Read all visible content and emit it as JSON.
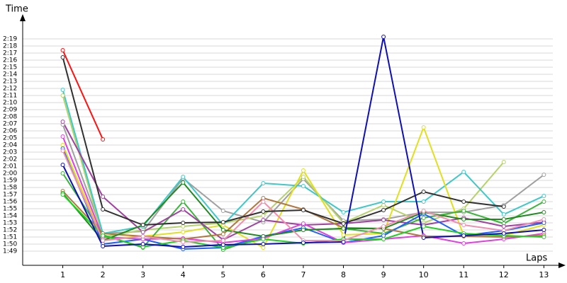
{
  "chart_data": {
    "type": "line",
    "x_label": "Laps",
    "y_label": "Time",
    "x": [
      1,
      2,
      3,
      4,
      5,
      6,
      7,
      8,
      9,
      10,
      11,
      12,
      13
    ],
    "xlim": [
      0,
      13.4
    ],
    "xticks": [
      1,
      2,
      3,
      4,
      5,
      6,
      7,
      8,
      9,
      10,
      11,
      12,
      13
    ],
    "ylim": [
      107,
      142
    ],
    "yticks": [
      {
        "value": 109,
        "label": "1:49"
      },
      {
        "value": 110,
        "label": "1:50"
      },
      {
        "value": 111,
        "label": "1:51"
      },
      {
        "value": 112,
        "label": "1:52"
      },
      {
        "value": 113,
        "label": "1:53"
      },
      {
        "value": 114,
        "label": "1:54"
      },
      {
        "value": 115,
        "label": "1:55"
      },
      {
        "value": 116,
        "label": "1:56"
      },
      {
        "value": 117,
        "label": "1:57"
      },
      {
        "value": 118,
        "label": "1:58"
      },
      {
        "value": 119,
        "label": "1:59"
      },
      {
        "value": 120,
        "label": "2:00"
      },
      {
        "value": 121,
        "label": "2:01"
      },
      {
        "value": 122,
        "label": "2:02"
      },
      {
        "value": 123,
        "label": "2:03"
      },
      {
        "value": 124,
        "label": "2:04"
      },
      {
        "value": 125,
        "label": "2:05"
      },
      {
        "value": 126,
        "label": "2:06"
      },
      {
        "value": 127,
        "label": "2:07"
      },
      {
        "value": 128,
        "label": "2:08"
      },
      {
        "value": 129,
        "label": "2:09"
      },
      {
        "value": 130,
        "label": "2:10"
      },
      {
        "value": 131,
        "label": "2:11"
      },
      {
        "value": 132,
        "label": "2:12"
      },
      {
        "value": 133,
        "label": "2:13"
      },
      {
        "value": 134,
        "label": "2:14"
      },
      {
        "value": 135,
        "label": "2:15"
      },
      {
        "value": 136,
        "label": "2:16"
      },
      {
        "value": 137,
        "label": "2:17"
      },
      {
        "value": 138,
        "label": "2:18"
      },
      {
        "value": 139,
        "label": "2:19"
      }
    ],
    "grid": true,
    "series": [
      {
        "color": "#a0a0a0",
        "values": [
          126.9,
          111.5,
          111.8,
          119.3,
          114.7,
          113.1,
          119.2,
          113.3,
          113.5,
          114.5,
          114.5,
          115.5,
          119.8
        ]
      },
      {
        "color": "#b5d36a",
        "values": [
          131,
          111,
          112,
          112.5,
          113,
          114,
          119.5,
          113,
          115.5,
          113,
          115,
          121.6,
          null
        ]
      },
      {
        "color": "#40c8c8",
        "values": [
          131.8,
          111.5,
          112.5,
          119.5,
          112.7,
          118.6,
          118.2,
          114.5,
          116,
          116,
          120.2,
          114.2,
          116.8
        ]
      },
      {
        "color": "#e0e020",
        "values": [
          124,
          110.7,
          111.1,
          111.7,
          112.7,
          109.5,
          120.4,
          111.3,
          111.5,
          126.5,
          111.2,
          111.2,
          112.7
        ]
      },
      {
        "color": "#3cb43c",
        "values": [
          120,
          111.3,
          109.5,
          116,
          109.2,
          111.1,
          112,
          112.2,
          111.5,
          113.7,
          114.7,
          112.9,
          116
        ]
      },
      {
        "color": "#a040a0",
        "values": [
          127.3,
          116.7,
          111.7,
          114.9,
          110.6,
          113.4,
          112.7,
          112.9,
          113.4,
          112.7,
          113.7,
          112.5,
          113.1
        ]
      },
      {
        "color": "#2060ff",
        "values": [
          123.5,
          110,
          110.7,
          109.3,
          109.5,
          111.1,
          112.3,
          110.2,
          111.2,
          114.3,
          111.2,
          111.9,
          113
        ]
      },
      {
        "color": "#e040e0",
        "values": [
          125.2,
          111,
          110.7,
          110.8,
          110.2,
          110.8,
          112.9,
          110.2,
          110.7,
          111.2,
          110.1,
          110.7,
          111.5
        ]
      },
      {
        "color": "#b07840",
        "values": [
          117.5,
          111.5,
          111.1,
          110.7,
          111.4,
          116.5,
          114.9,
          112.3,
          112.2,
          111.1,
          111.1,
          111,
          111.2
        ]
      },
      {
        "color": "#208a20",
        "values": [
          117.2,
          110.5,
          112.7,
          118.7,
          112,
          111.1,
          112,
          112.2,
          112.2,
          114.5,
          113.5,
          113.5,
          114.5
        ]
      },
      {
        "color": "#20d020",
        "values": [
          117,
          111.2,
          109.6,
          110.5,
          109.5,
          110.7,
          110.1,
          110.7,
          110.7,
          112.5,
          111.5,
          111.2,
          111
        ]
      },
      {
        "color": "#f090b0",
        "values": [
          123.2,
          110.5,
          111.1,
          110.3,
          110.5,
          116,
          110.5,
          110.5,
          112.5,
          114.7,
          112.7,
          111.9,
          113.5
        ]
      },
      {
        "color": "#303030",
        "values": [
          136.4,
          114.9,
          112.7,
          113,
          113.1,
          114.6,
          114.8,
          112.9,
          114.8,
          117.4,
          116,
          115.3,
          null
        ]
      },
      {
        "color": "#1010b0",
        "values": [
          121.2,
          109.7,
          110,
          109.6,
          109.9,
          110,
          110.2,
          110.3,
          139.3,
          110.9,
          111.2,
          111.5,
          112
        ]
      },
      {
        "color": "#ff1010",
        "values": [
          137.4,
          124.8,
          null,
          null,
          null,
          null,
          null,
          null,
          null,
          null,
          null,
          null,
          null
        ]
      }
    ]
  }
}
